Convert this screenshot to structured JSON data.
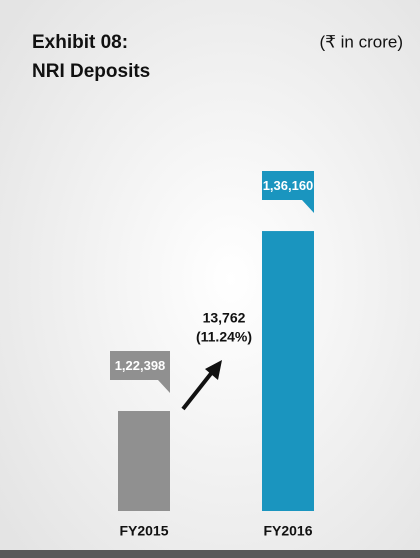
{
  "chart_data": {
    "type": "bar",
    "title": "Exhibit 08:",
    "subtitle": "NRI Deposits",
    "unit_note": "(₹ in crore)",
    "categories": [
      "FY2015",
      "FY2016"
    ],
    "values": [
      122398,
      136160
    ],
    "value_labels": [
      "1,22,398",
      "1,36,160"
    ],
    "colors": [
      "#909090",
      "#1a95bf"
    ],
    "ylim": [
      114750,
      139300
    ],
    "annotations": [
      "13,762",
      "(11.24%)"
    ]
  }
}
